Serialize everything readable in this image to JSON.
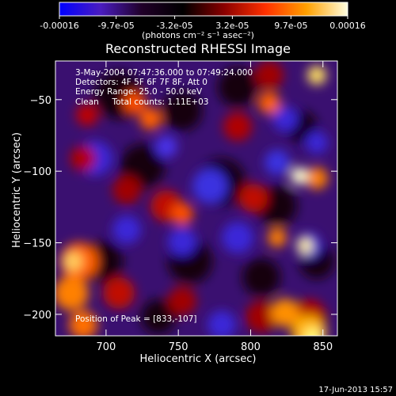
{
  "colorbar": {
    "tick_labels": [
      "-0.00016",
      "-9.7e-05",
      "-3.2e-05",
      "3.2e-05",
      "9.7e-05",
      "0.00016"
    ],
    "title": "(photons cm⁻² s⁻¹ asec⁻²)",
    "colors": [
      "#0000ff",
      "#4a1cc0",
      "#200028",
      "#000000",
      "#8a0000",
      "#ff3000",
      "#ffa000",
      "#ffffe0"
    ]
  },
  "chart_data": {
    "type": "heatmap",
    "title": "Reconstructed RHESSI Image",
    "xlabel": "Heliocentric X (arcsec)",
    "ylabel": "Heliocentric Y (arcsec)",
    "xlim": [
      665,
      860
    ],
    "ylim": [
      -215,
      -23
    ],
    "x_ticks": [
      700,
      750,
      800,
      850
    ],
    "y_ticks": [
      -50,
      -100,
      -150,
      -200
    ],
    "x_tick_labels": [
      "700",
      "750",
      "800",
      "850"
    ],
    "y_tick_labels": [
      "−50",
      "−100",
      "−150",
      "−200"
    ],
    "colorbar_range": [
      -0.00016,
      0.00016
    ],
    "peak_position": [
      833,
      -107
    ],
    "annotations": [
      "3-May-2004 07:47:36.000 to 07:49:24.000",
      "Detectors: 4F 5F 6F 7F 8F, Att 0",
      "Energy Range: 25.0 - 50.0 keV",
      "Clean     Total counts: 1.11E+03"
    ],
    "peak_label": "Position of Peak = [833,-107]"
  },
  "timestamp": "17-Jun-2013 15:57"
}
